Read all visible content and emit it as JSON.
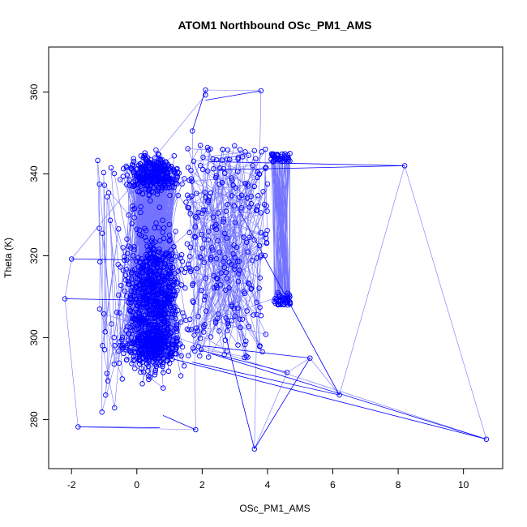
{
  "chart_data": {
    "type": "scatter",
    "title": "ATOM1 Northbound OSc_PM1_AMS",
    "xlabel": "OSc_PM1_AMS",
    "ylabel": "Theta (K)",
    "xlim": [
      -2.7,
      11.2
    ],
    "ylim": [
      268,
      371
    ],
    "x_ticks": [
      -2,
      0,
      2,
      4,
      6,
      8,
      10
    ],
    "y_ticks": [
      280,
      300,
      320,
      340,
      360
    ],
    "series_color": "#0000ff",
    "grid": false,
    "markers": "open-circle",
    "lines_connect_points": true,
    "notable_points": [
      {
        "x": 10.7,
        "y": 275.2
      },
      {
        "x": 8.2,
        "y": 342
      },
      {
        "x": 6.2,
        "y": 286
      },
      {
        "x": 5.3,
        "y": 295
      },
      {
        "x": 4.6,
        "y": 291.5
      },
      {
        "x": 3.6,
        "y": 272.8
      },
      {
        "x": 3.8,
        "y": 360.3
      },
      {
        "x": 2.1,
        "y": 360.5
      },
      {
        "x": 2.1,
        "y": 359.3
      },
      {
        "x": -2.0,
        "y": 319.2
      },
      {
        "x": -2.2,
        "y": 309.5
      },
      {
        "x": -1.8,
        "y": 278.2
      },
      {
        "x": 1.8,
        "y": 277.5
      },
      {
        "x": 1.7,
        "y": 350.5
      }
    ],
    "bulk_region": {
      "x_range": [
        -1.5,
        2.0
      ],
      "y_range": [
        278,
        349
      ],
      "center_x": 0.5
    }
  }
}
